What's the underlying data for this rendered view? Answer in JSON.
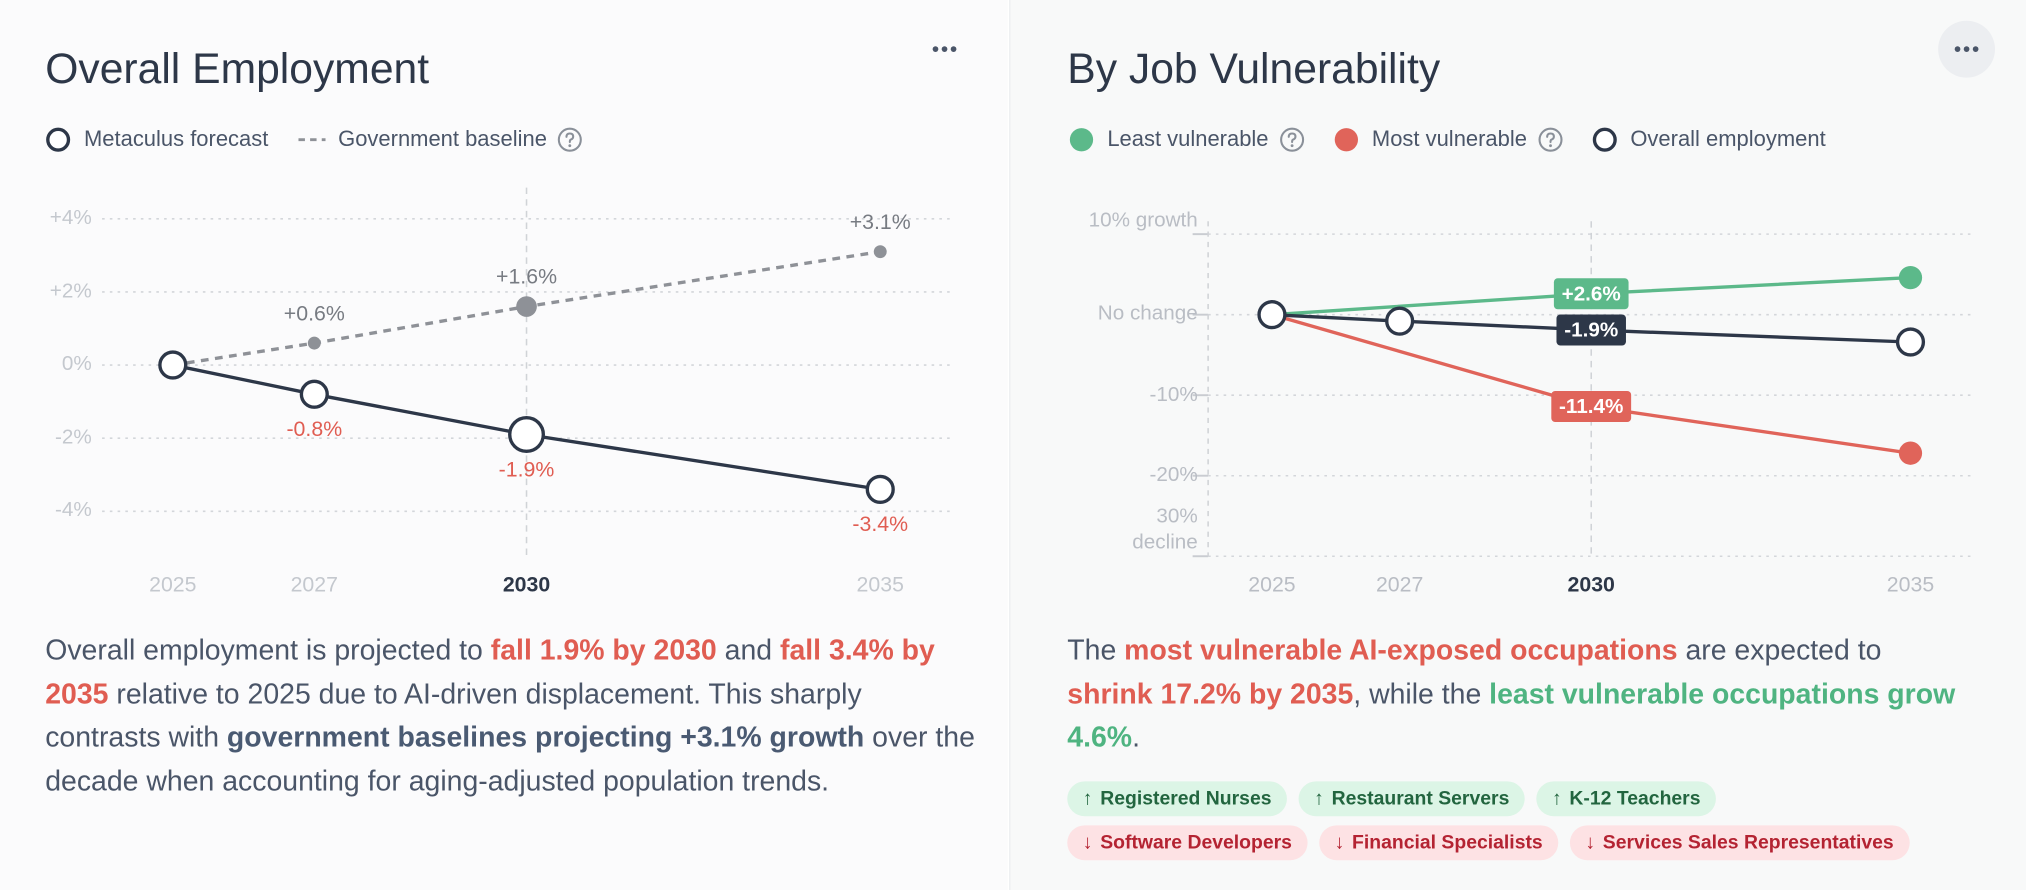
{
  "chart_data": [
    {
      "type": "line",
      "title": "Overall Employment",
      "x": [
        2025,
        2027,
        2030,
        2035
      ],
      "xlim": [
        2024,
        2036
      ],
      "xticks": [
        2025,
        2027,
        2030,
        2035
      ],
      "highlight_x": 2030,
      "ylim": [
        -5.3,
        4.5
      ],
      "yticks": [
        {
          "value": 4,
          "label": "+4%"
        },
        {
          "value": 2,
          "label": "+2%"
        },
        {
          "value": 0,
          "label": "0%"
        },
        {
          "value": -2,
          "label": "-2%"
        },
        {
          "value": -4,
          "label": "-4%"
        }
      ],
      "grid": true,
      "series": [
        {
          "name": "Metaculus forecast",
          "color": "#2d3748",
          "marker": "ring",
          "label_color": "#e05d52",
          "label_position": "below",
          "values": [
            0,
            -0.8,
            -1.9,
            -3.4
          ],
          "value_labels": [
            null,
            "-0.8%",
            "-1.9%",
            "-3.4%"
          ]
        },
        {
          "name": "Government baseline",
          "color": "#8e9197",
          "marker": "dot",
          "dashed": true,
          "help": true,
          "label_color": "#777b82",
          "label_position": "above",
          "values": [
            0,
            0.6,
            1.6,
            3.1
          ],
          "value_labels": [
            null,
            "+0.6%",
            "+1.6%",
            "+3.1%"
          ]
        }
      ]
    },
    {
      "type": "line",
      "title": "By Job Vulnerability",
      "xlim": [
        2024,
        2036
      ],
      "xticks": [
        2025,
        2027,
        2030,
        2035
      ],
      "highlight_x": 2030,
      "ylim": [
        -30,
        10
      ],
      "yticks": [
        {
          "value": 10,
          "label": "10% growth"
        },
        {
          "value": 0,
          "label": "No change"
        },
        {
          "value": -10,
          "label": "-10%"
        },
        {
          "value": -20,
          "label": "-20%"
        },
        {
          "value": -30,
          "label": "30% decline"
        }
      ],
      "grid": true,
      "series": [
        {
          "name": "Least vulnerable",
          "color": "#5cb98a",
          "marker": "dot",
          "help": true,
          "label_position": "box",
          "x": [
            2025,
            2030,
            2035
          ],
          "values": [
            0,
            2.6,
            4.6
          ],
          "value_labels": [
            null,
            "+2.6%",
            null
          ]
        },
        {
          "name": "Most vulnerable",
          "color": "#e0645a",
          "marker": "dot",
          "help": true,
          "label_position": "box",
          "x": [
            2025,
            2030,
            2035
          ],
          "values": [
            0,
            -11.4,
            -17.2
          ],
          "value_labels": [
            null,
            "-11.4%",
            null
          ]
        },
        {
          "name": "Overall employment",
          "color": "#2d3748",
          "marker": "ring",
          "label_position": "box",
          "x": [
            2025,
            2027,
            2030,
            2035
          ],
          "values": [
            0,
            -0.8,
            -1.9,
            -3.4
          ],
          "value_labels": [
            null,
            null,
            "-1.9%",
            null
          ]
        }
      ]
    }
  ],
  "left_text": [
    {
      "text": "Overall employment is projected to "
    },
    {
      "text": "fall 1.9% by 2030",
      "style": "red"
    },
    {
      "text": " and "
    },
    {
      "text": "fall 3.4% by 2035",
      "style": "red"
    },
    {
      "text": " relative to 2025 due to AI-driven displacement. This sharply contrasts with "
    },
    {
      "text": "government baselines projecting +3.1% growth",
      "style": "bold"
    },
    {
      "text": " over the decade when accounting for aging-adjusted population trends."
    }
  ],
  "right_text": [
    {
      "text": "The "
    },
    {
      "text": "most vulnerable AI-exposed occupations",
      "style": "red"
    },
    {
      "text": " are expected to "
    },
    {
      "text": "shrink 17.2% by 2035",
      "style": "red"
    },
    {
      "text": ", while the "
    },
    {
      "text": "least vulnerable occupations grow 4.6%",
      "style": "green"
    },
    {
      "text": "."
    }
  ],
  "growing_occupations": {
    "arrow": "↑",
    "items": [
      "Registered Nurses",
      "Restaurant Servers",
      "K-12 Teachers"
    ]
  },
  "shrinking_occupations": {
    "arrow": "↓",
    "items": [
      "Software Developers",
      "Financial Specialists",
      "Services Sales Representatives"
    ]
  }
}
